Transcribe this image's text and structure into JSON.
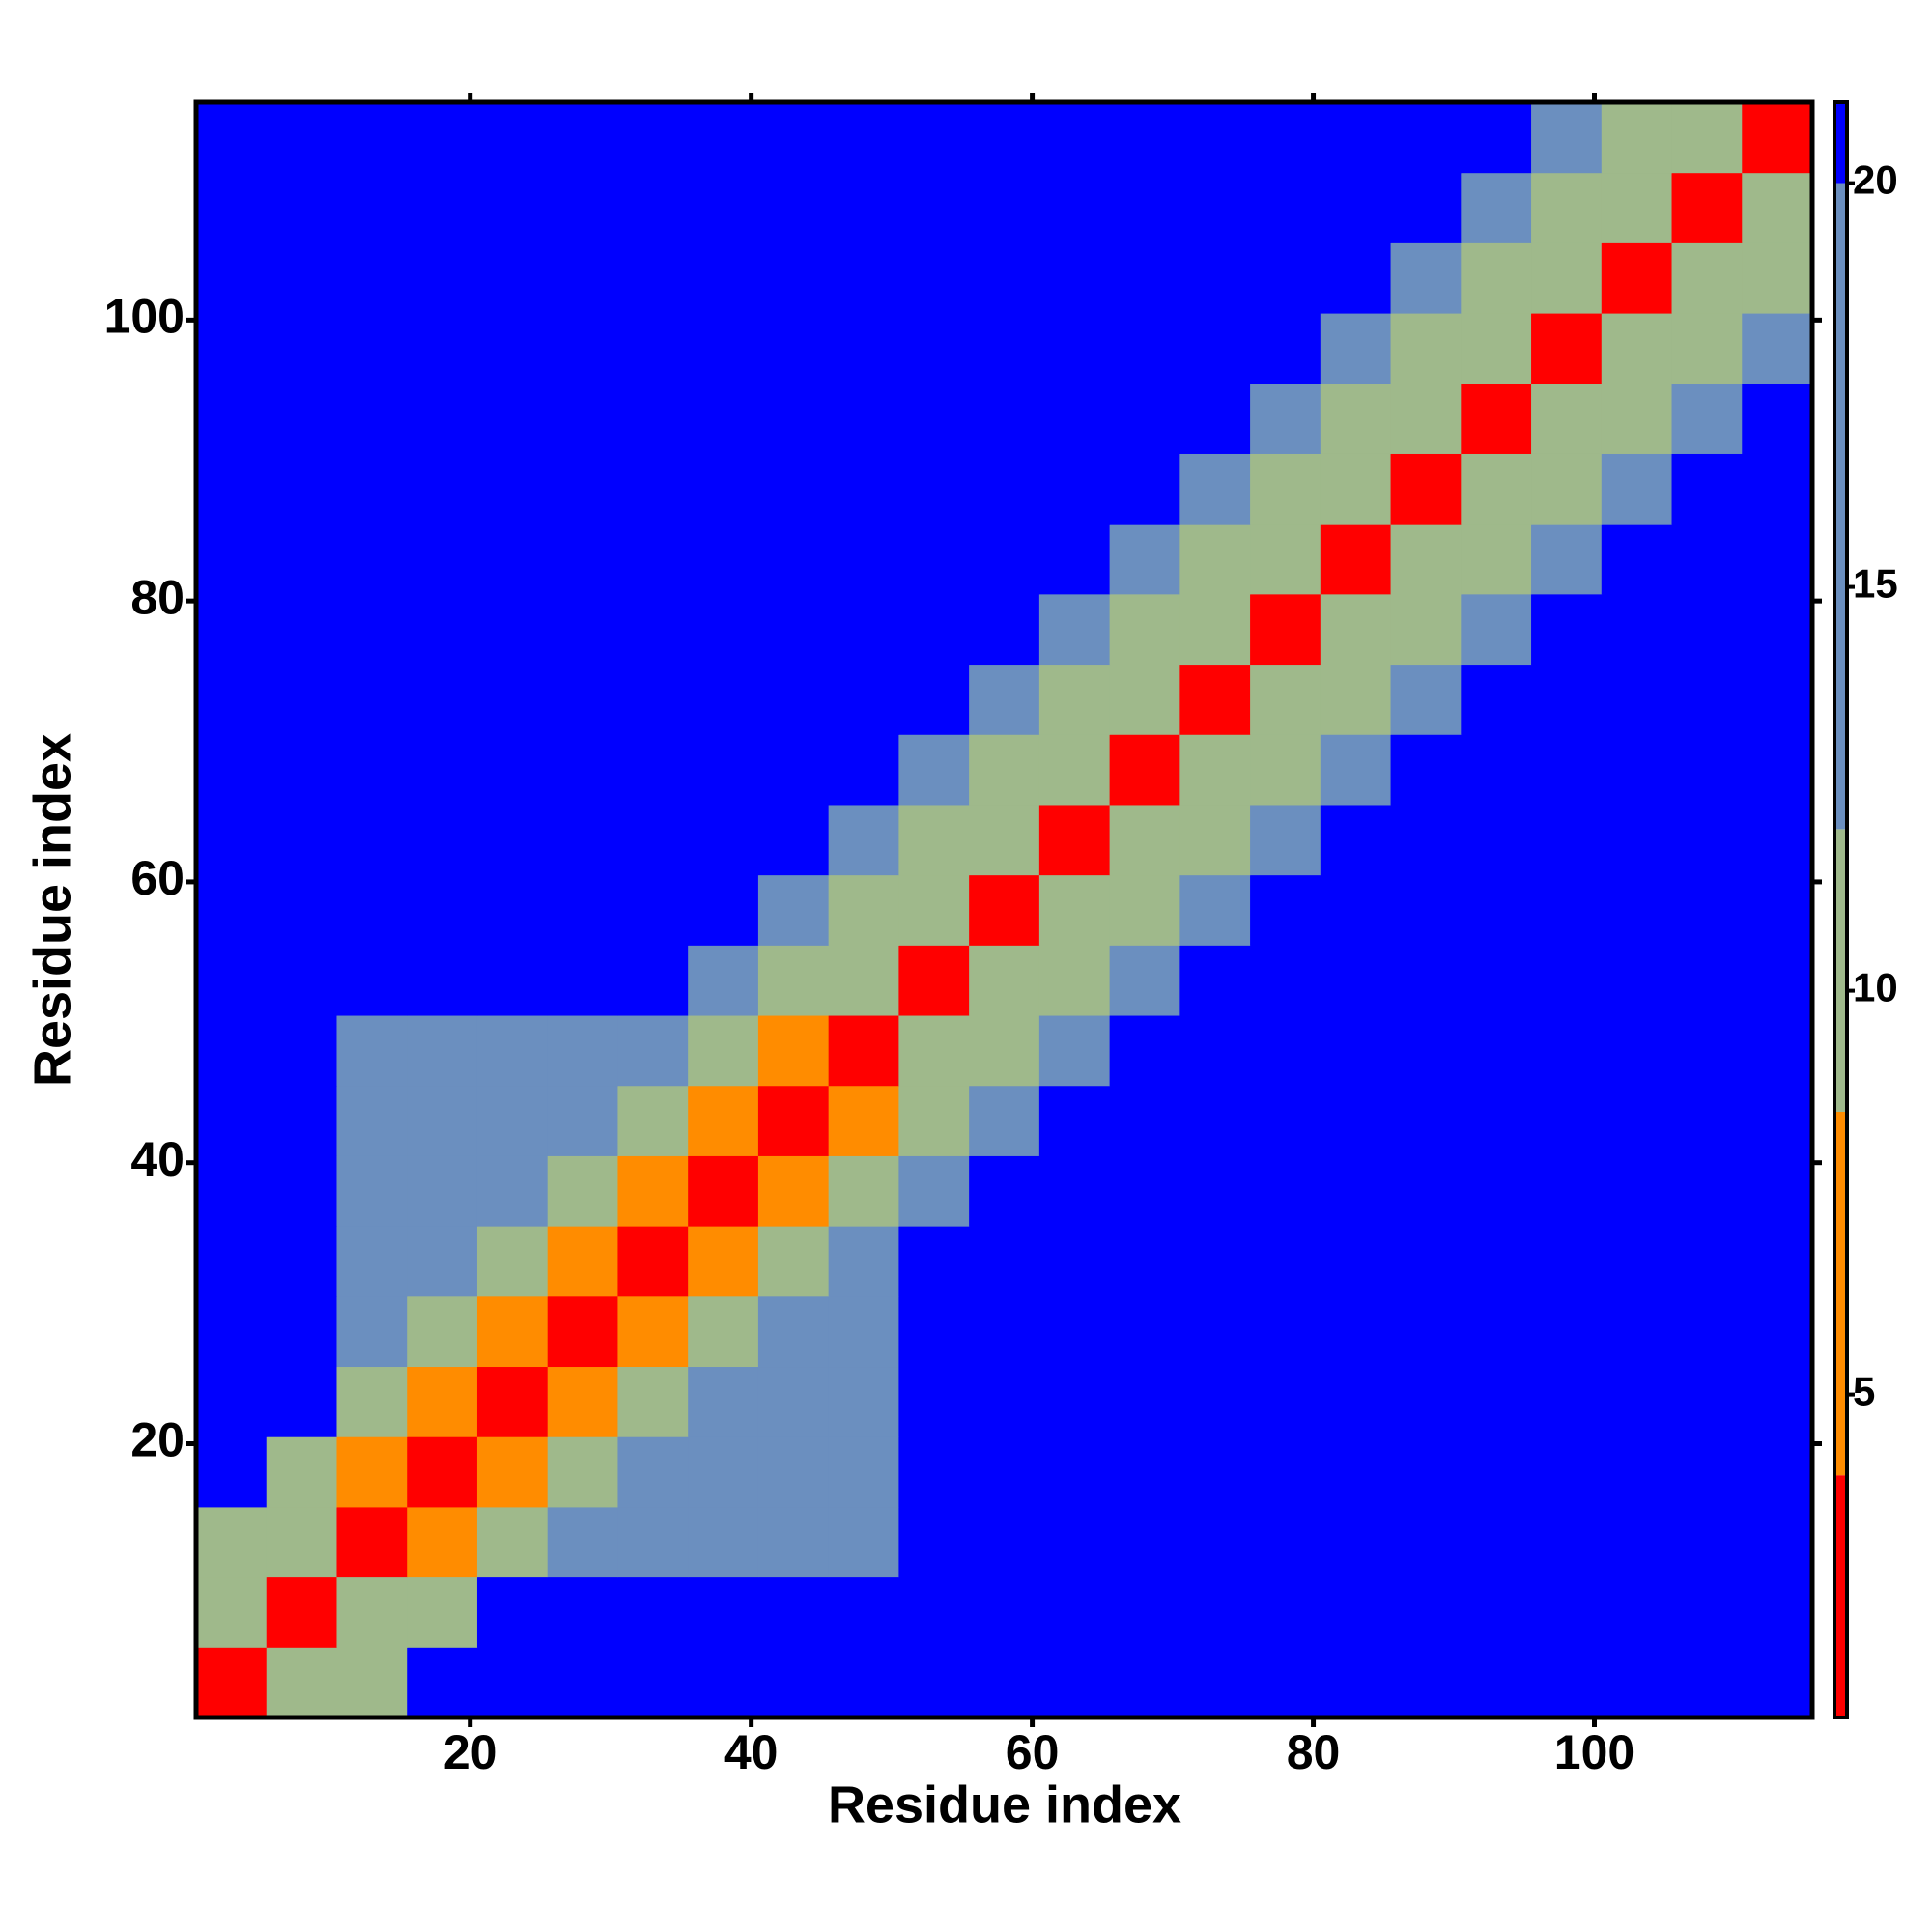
{
  "chart_data": {
    "type": "heatmap",
    "x_label": "Residue index",
    "y_label": "Residue index",
    "xbins": [
      0.5,
      5.5,
      10.5,
      15.5,
      20.5,
      25.5,
      30.5,
      35.5,
      40.5,
      45.5,
      50.5,
      55.5,
      60.5,
      65.5,
      70.5,
      75.5,
      80.5,
      85.5,
      90.5,
      95.5,
      100.5,
      105.5,
      110.5,
      115.5
    ],
    "ybins": [
      0.5,
      5.5,
      10.5,
      15.5,
      20.5,
      25.5,
      30.5,
      35.5,
      40.5,
      45.5,
      50.5,
      55.5,
      60.5,
      65.5,
      70.5,
      75.5,
      80.5,
      85.5,
      90.5,
      95.5,
      100.5,
      105.5,
      110.5,
      115.5
    ],
    "xlim": [
      0.5,
      115.5
    ],
    "ylim": [
      0.5,
      115.5
    ],
    "xticks": [
      20,
      40,
      60,
      80,
      100
    ],
    "yticks": [
      20,
      40,
      60,
      80,
      100
    ],
    "z": [
      [
        3,
        9,
        12,
        21,
        21,
        21,
        21,
        21,
        21,
        21,
        21,
        21,
        21,
        21,
        21,
        21,
        21,
        21,
        21,
        21,
        21,
        21,
        21
      ],
      [
        9,
        3,
        9,
        12,
        21,
        21,
        21,
        21,
        21,
        21,
        21,
        21,
        21,
        21,
        21,
        21,
        21,
        21,
        21,
        21,
        21,
        21,
        21
      ],
      [
        12,
        9,
        3,
        8,
        11,
        14,
        14,
        14,
        17,
        17,
        21,
        21,
        21,
        21,
        21,
        21,
        21,
        21,
        21,
        21,
        21,
        21,
        21
      ],
      [
        21,
        12,
        8,
        3,
        8,
        11,
        14,
        14,
        14,
        17,
        21,
        21,
        21,
        21,
        21,
        21,
        21,
        21,
        21,
        21,
        21,
        21,
        21
      ],
      [
        21,
        21,
        11,
        8,
        3,
        8,
        11,
        14,
        14,
        14,
        21,
        21,
        21,
        21,
        21,
        21,
        21,
        21,
        21,
        21,
        21,
        21,
        21
      ],
      [
        21,
        21,
        14,
        11,
        8,
        3,
        8,
        11,
        14,
        14,
        21,
        21,
        21,
        21,
        21,
        21,
        21,
        21,
        21,
        21,
        21,
        21,
        21
      ],
      [
        21,
        21,
        14,
        14,
        11,
        8,
        3,
        8,
        11,
        14,
        21,
        21,
        21,
        21,
        21,
        21,
        21,
        21,
        21,
        21,
        21,
        21,
        21
      ],
      [
        21,
        21,
        14,
        14,
        14,
        11,
        8,
        3,
        8,
        11,
        17,
        21,
        21,
        21,
        21,
        21,
        21,
        21,
        21,
        21,
        21,
        21,
        21
      ],
      [
        21,
        21,
        17,
        14,
        14,
        14,
        11,
        8,
        3,
        8,
        12,
        17,
        21,
        21,
        21,
        21,
        21,
        21,
        21,
        21,
        21,
        21,
        21
      ],
      [
        21,
        21,
        17,
        17,
        14,
        14,
        14,
        11,
        8,
        3,
        9,
        12,
        17,
        21,
        21,
        21,
        21,
        21,
        21,
        21,
        21,
        21,
        21
      ],
      [
        21,
        21,
        21,
        21,
        21,
        21,
        21,
        17,
        12,
        9,
        3,
        9,
        12,
        17,
        21,
        21,
        21,
        21,
        21,
        21,
        21,
        21,
        21
      ],
      [
        21,
        21,
        21,
        21,
        21,
        21,
        21,
        21,
        17,
        12,
        9,
        3,
        9,
        12,
        17,
        21,
        21,
        21,
        21,
        21,
        21,
        21,
        21
      ],
      [
        21,
        21,
        21,
        21,
        21,
        21,
        21,
        21,
        21,
        17,
        12,
        9,
        3,
        9,
        12,
        17,
        21,
        21,
        21,
        21,
        21,
        21,
        21
      ],
      [
        21,
        21,
        21,
        21,
        21,
        21,
        21,
        21,
        21,
        21,
        17,
        12,
        9,
        3,
        9,
        12,
        17,
        21,
        21,
        21,
        21,
        21,
        21
      ],
      [
        21,
        21,
        21,
        21,
        21,
        21,
        21,
        21,
        21,
        21,
        21,
        17,
        12,
        9,
        3,
        9,
        12,
        17,
        21,
        21,
        21,
        21,
        21
      ],
      [
        21,
        21,
        21,
        21,
        21,
        21,
        21,
        21,
        21,
        21,
        21,
        21,
        17,
        12,
        9,
        3,
        9,
        12,
        17,
        21,
        21,
        21,
        21
      ],
      [
        21,
        21,
        21,
        21,
        21,
        21,
        21,
        21,
        21,
        21,
        21,
        21,
        21,
        17,
        12,
        9,
        3,
        9,
        12,
        17,
        21,
        21,
        21
      ],
      [
        21,
        21,
        21,
        21,
        21,
        21,
        21,
        21,
        21,
        21,
        21,
        21,
        21,
        21,
        17,
        12,
        9,
        3,
        9,
        12,
        17,
        21,
        21
      ],
      [
        21,
        21,
        21,
        21,
        21,
        21,
        21,
        21,
        21,
        21,
        21,
        21,
        21,
        21,
        21,
        17,
        12,
        9,
        3,
        9,
        12,
        17,
        21
      ],
      [
        21,
        21,
        21,
        21,
        21,
        21,
        21,
        21,
        21,
        21,
        21,
        21,
        21,
        21,
        21,
        21,
        17,
        12,
        9,
        3,
        9,
        12,
        17
      ],
      [
        21,
        21,
        21,
        21,
        21,
        21,
        21,
        21,
        21,
        21,
        21,
        21,
        21,
        21,
        21,
        21,
        21,
        17,
        12,
        9,
        3,
        9,
        12
      ],
      [
        21,
        21,
        21,
        21,
        21,
        21,
        21,
        21,
        21,
        21,
        21,
        21,
        21,
        21,
        21,
        21,
        21,
        21,
        17,
        12,
        9,
        3,
        9
      ],
      [
        21,
        21,
        21,
        21,
        21,
        21,
        21,
        21,
        21,
        21,
        21,
        21,
        21,
        21,
        21,
        21,
        21,
        21,
        21,
        17,
        12,
        9,
        3
      ]
    ],
    "clim": [
      1,
      21
    ],
    "colorscale": [
      [
        4,
        "#ff0000"
      ],
      [
        8.5,
        "#ff8c00"
      ],
      [
        12,
        "#9fb98b"
      ],
      [
        20,
        "#6b8fbf"
      ],
      [
        21,
        "#0000ff"
      ]
    ],
    "cticks": [
      5,
      10,
      15,
      20
    ]
  }
}
